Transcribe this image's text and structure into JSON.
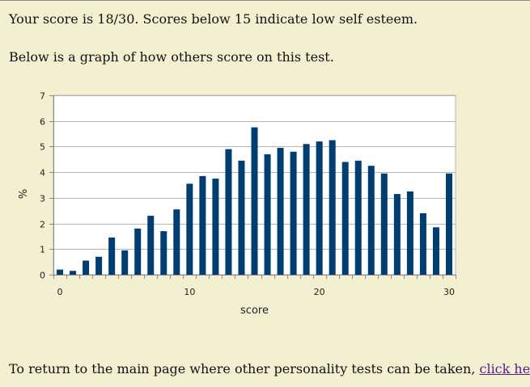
{
  "text": {
    "score_line": "Your score is 18/30. Scores below 15 indicate low self esteem.",
    "below_line": "Below is a graph of how others score on this test.",
    "footer_prefix": "To return to the main page where other personality tests can be taken, ",
    "footer_link": "click here",
    "footer_suffix": "."
  },
  "colors": {
    "bar": "#003d73",
    "grid": "#b3b3b3",
    "plot_bg": "#ffffff"
  },
  "chart_data": {
    "type": "bar",
    "xlabel": "score",
    "ylabel": "%",
    "ylim": [
      0,
      7
    ],
    "yticks": [
      0,
      1,
      2,
      3,
      4,
      5,
      6,
      7
    ],
    "xticks": [
      0,
      10,
      20,
      30
    ],
    "grid": true,
    "x": [
      0,
      1,
      2,
      3,
      4,
      5,
      6,
      7,
      8,
      9,
      10,
      11,
      12,
      13,
      14,
      15,
      16,
      17,
      18,
      19,
      20,
      21,
      22,
      23,
      24,
      25,
      26,
      27,
      28,
      29,
      30
    ],
    "values": [
      0.2,
      0.15,
      0.55,
      0.7,
      1.45,
      0.95,
      1.8,
      2.3,
      1.7,
      2.55,
      3.55,
      3.85,
      3.75,
      4.9,
      4.45,
      5.75,
      4.7,
      4.95,
      4.8,
      5.1,
      5.2,
      5.25,
      4.4,
      4.45,
      4.25,
      3.95,
      3.15,
      3.25,
      2.4,
      1.85,
      3.95
    ]
  }
}
